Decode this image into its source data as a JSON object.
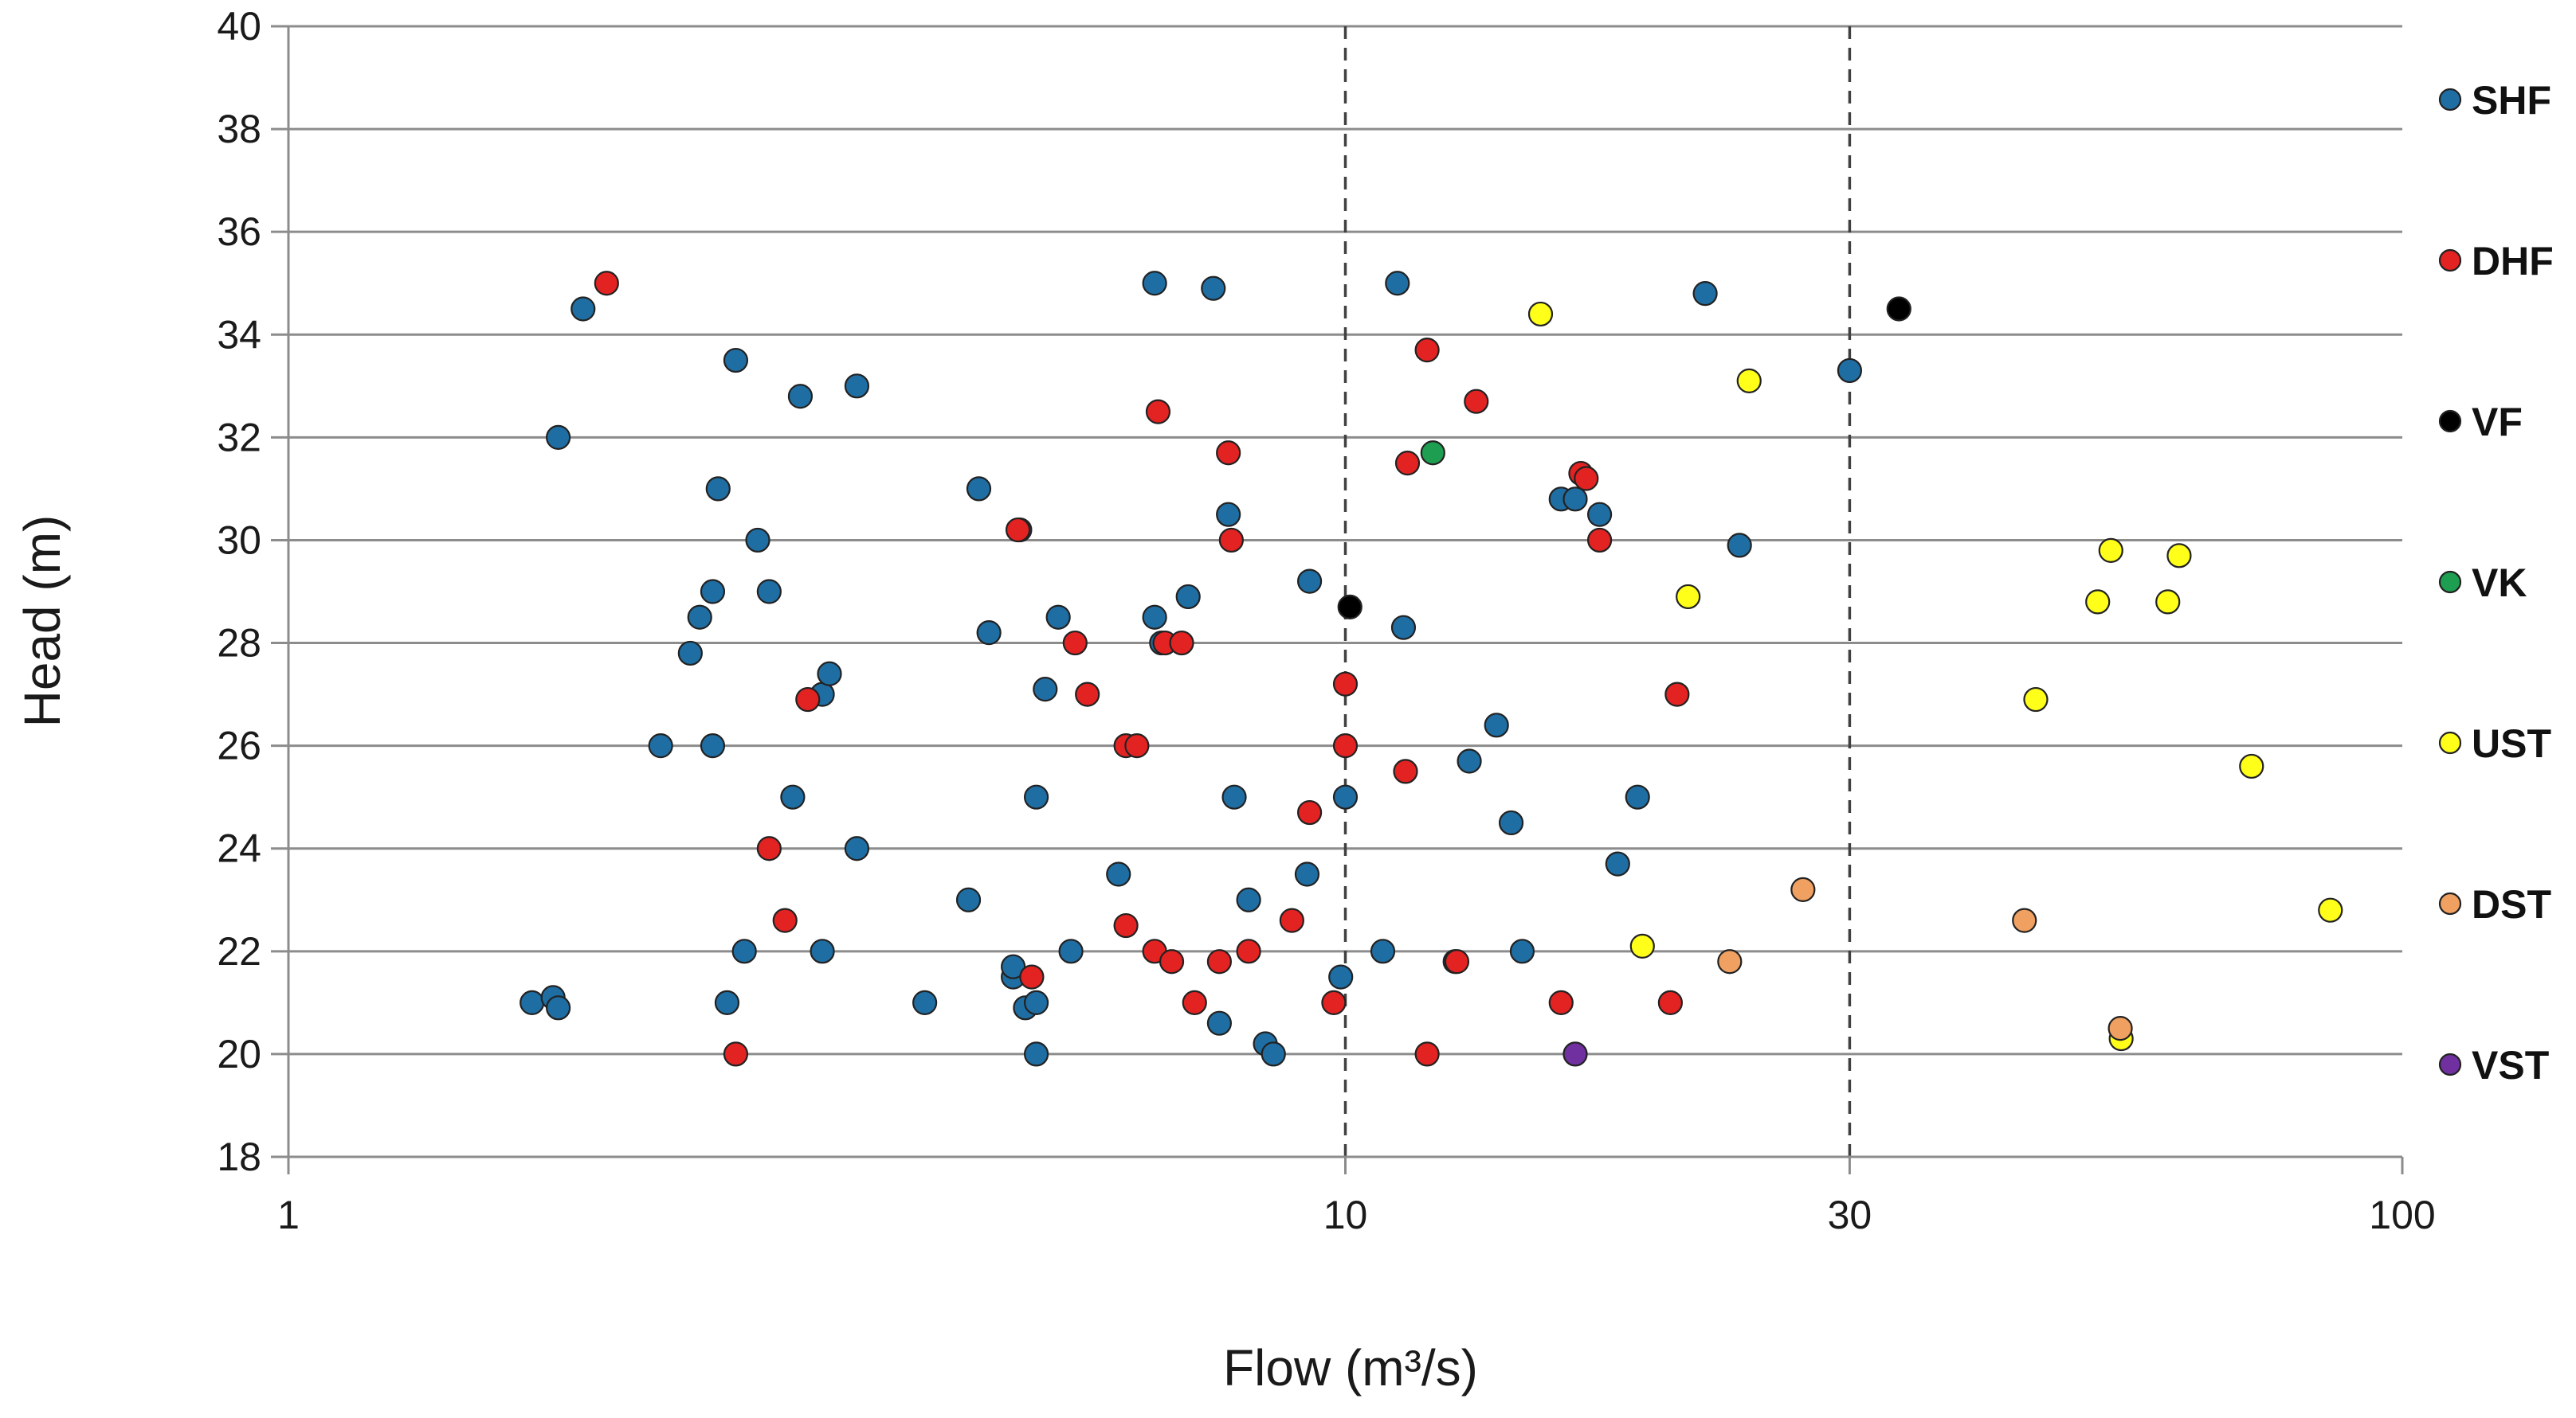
{
  "chart_data": {
    "type": "scatter",
    "xlabel": "Flow (m³/s)",
    "ylabel": "Head (m)",
    "x_scale": "log",
    "xlim": [
      1,
      100
    ],
    "ylim": [
      18,
      40
    ],
    "x_ticks": [
      1,
      10,
      30,
      100
    ],
    "x_tick_labels": [
      "1",
      "10",
      "30",
      "100"
    ],
    "y_ticks": [
      18,
      20,
      22,
      24,
      26,
      28,
      30,
      32,
      34,
      36,
      38,
      40
    ],
    "y_tick_labels": [
      "18",
      "20",
      "22",
      "24",
      "26",
      "28",
      "30",
      "32",
      "34",
      "36",
      "38",
      "40"
    ],
    "dashed_x_lines": [
      10,
      30
    ],
    "grid": "horizontal",
    "legend_position": "right",
    "series": [
      {
        "name": "SHF",
        "color": "#1f6ea3",
        "points": [
          [
            1.7,
            21.0
          ],
          [
            1.78,
            21.1
          ],
          [
            1.8,
            20.9
          ],
          [
            1.8,
            32.0
          ],
          [
            1.9,
            34.5
          ],
          [
            2.25,
            26.0
          ],
          [
            2.4,
            27.8
          ],
          [
            2.45,
            28.5
          ],
          [
            2.52,
            26.0
          ],
          [
            2.52,
            29.0
          ],
          [
            2.55,
            31.0
          ],
          [
            2.6,
            21.0
          ],
          [
            2.65,
            33.5
          ],
          [
            2.7,
            22.0
          ],
          [
            2.78,
            30.0
          ],
          [
            2.85,
            29.0
          ],
          [
            3.0,
            25.0
          ],
          [
            3.05,
            32.8
          ],
          [
            3.2,
            22.0
          ],
          [
            3.2,
            27.0
          ],
          [
            3.25,
            27.4
          ],
          [
            3.45,
            33.0
          ],
          [
            3.45,
            24.0
          ],
          [
            4.0,
            21.0
          ],
          [
            4.4,
            23.0
          ],
          [
            4.5,
            31.0
          ],
          [
            4.6,
            28.2
          ],
          [
            4.85,
            21.5
          ],
          [
            4.85,
            21.7
          ],
          [
            4.92,
            30.2
          ],
          [
            4.98,
            20.9
          ],
          [
            5.1,
            21.0
          ],
          [
            5.1,
            20.0
          ],
          [
            5.1,
            25.0
          ],
          [
            5.2,
            27.1
          ],
          [
            5.35,
            28.5
          ],
          [
            5.5,
            22.0
          ],
          [
            6.1,
            23.5
          ],
          [
            6.6,
            28.5
          ],
          [
            6.6,
            35.0
          ],
          [
            6.7,
            28.0
          ],
          [
            7.1,
            28.9
          ],
          [
            7.5,
            34.9
          ],
          [
            7.6,
            20.6
          ],
          [
            7.75,
            30.5
          ],
          [
            7.85,
            25.0
          ],
          [
            8.1,
            23.0
          ],
          [
            8.4,
            20.2
          ],
          [
            8.55,
            20.0
          ],
          [
            9.2,
            23.5
          ],
          [
            9.25,
            29.2
          ],
          [
            9.9,
            21.5
          ],
          [
            10.0,
            25.0
          ],
          [
            10.85,
            22.0
          ],
          [
            11.2,
            35.0
          ],
          [
            11.35,
            28.3
          ],
          [
            12.7,
            21.8
          ],
          [
            13.1,
            25.7
          ],
          [
            13.9,
            26.4
          ],
          [
            14.35,
            24.5
          ],
          [
            14.7,
            22.0
          ],
          [
            16.0,
            30.8
          ],
          [
            16.5,
            30.8
          ],
          [
            17.4,
            30.5
          ],
          [
            18.1,
            23.7
          ],
          [
            18.9,
            25.0
          ],
          [
            21.9,
            34.8
          ],
          [
            23.6,
            29.9
          ],
          [
            30.0,
            33.3
          ]
        ]
      },
      {
        "name": "DHF",
        "color": "#e32222",
        "points": [
          [
            2.0,
            35.0
          ],
          [
            2.65,
            20.0
          ],
          [
            2.85,
            24.0
          ],
          [
            2.95,
            22.6
          ],
          [
            3.1,
            26.9
          ],
          [
            4.9,
            30.2
          ],
          [
            5.05,
            21.5
          ],
          [
            5.55,
            28.0
          ],
          [
            5.7,
            27.0
          ],
          [
            6.2,
            22.5
          ],
          [
            6.2,
            26.0
          ],
          [
            6.35,
            26.0
          ],
          [
            6.6,
            22.0
          ],
          [
            6.65,
            32.5
          ],
          [
            6.75,
            28.0
          ],
          [
            6.85,
            21.8
          ],
          [
            7.0,
            28.0
          ],
          [
            7.2,
            21.0
          ],
          [
            7.8,
            30.0
          ],
          [
            7.75,
            31.7
          ],
          [
            7.6,
            21.8
          ],
          [
            8.1,
            22.0
          ],
          [
            8.9,
            22.6
          ],
          [
            9.25,
            24.7
          ],
          [
            9.75,
            21.0
          ],
          [
            10.0,
            27.2
          ],
          [
            10.0,
            26.0
          ],
          [
            11.4,
            25.5
          ],
          [
            11.45,
            31.5
          ],
          [
            11.95,
            33.7
          ],
          [
            11.95,
            20.0
          ],
          [
            12.75,
            21.8
          ],
          [
            13.3,
            32.7
          ],
          [
            16.0,
            21.0
          ],
          [
            16.7,
            31.3
          ],
          [
            16.9,
            31.2
          ],
          [
            17.4,
            30.0
          ],
          [
            20.3,
            21.0
          ],
          [
            20.6,
            27.0
          ]
        ]
      },
      {
        "name": "VF",
        "color": "#000000",
        "points": [
          [
            10.1,
            28.7
          ],
          [
            33.4,
            34.5
          ]
        ]
      },
      {
        "name": "VK",
        "color": "#1e9e50",
        "points": [
          [
            12.1,
            31.7
          ]
        ]
      },
      {
        "name": "UST",
        "color": "#ffff1a",
        "points": [
          [
            15.3,
            34.4
          ],
          [
            19.1,
            22.1
          ],
          [
            21.1,
            28.9
          ],
          [
            24.1,
            33.1
          ],
          [
            45.0,
            26.9
          ],
          [
            51.5,
            28.8
          ],
          [
            53.0,
            29.8
          ],
          [
            60.0,
            28.8
          ],
          [
            61.5,
            29.7
          ],
          [
            72.0,
            25.6
          ],
          [
            54.2,
            20.3
          ],
          [
            85.5,
            22.8
          ]
        ]
      },
      {
        "name": "DST",
        "color": "#f0a060",
        "points": [
          [
            23.1,
            21.8
          ],
          [
            27.1,
            23.2
          ],
          [
            43.9,
            22.6
          ],
          [
            54.1,
            20.5
          ]
        ]
      },
      {
        "name": "VST",
        "color": "#7030a0",
        "points": [
          [
            16.5,
            20.0
          ]
        ]
      }
    ]
  }
}
